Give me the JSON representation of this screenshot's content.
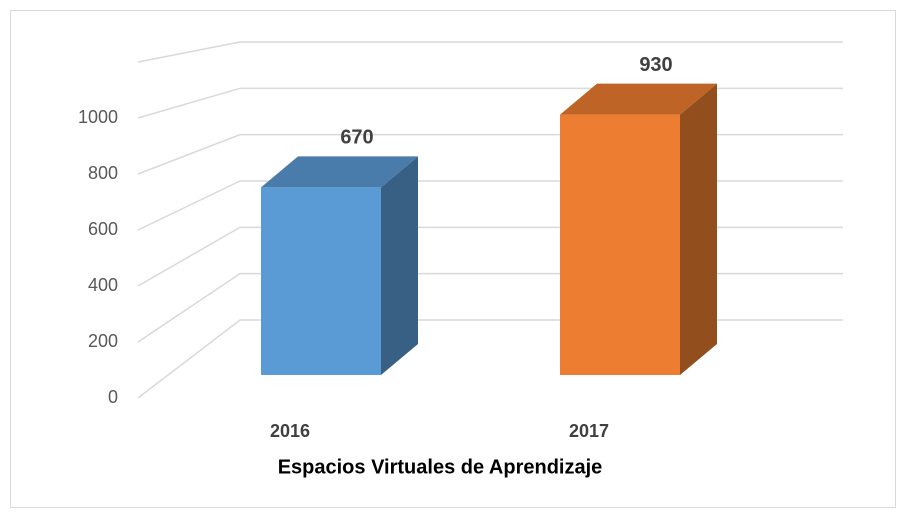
{
  "chart_data": {
    "type": "bar3d",
    "x_label": "Espacios Virtuales de Aprendizaje",
    "categories": [
      "2016",
      "2017"
    ],
    "values": [
      670,
      930
    ],
    "colors": [
      "#5b9bd5",
      "#ed7d31"
    ],
    "ylim": [
      0,
      1200
    ],
    "yticks": [
      0,
      200,
      400,
      600,
      800,
      1000
    ],
    "grid": true
  }
}
